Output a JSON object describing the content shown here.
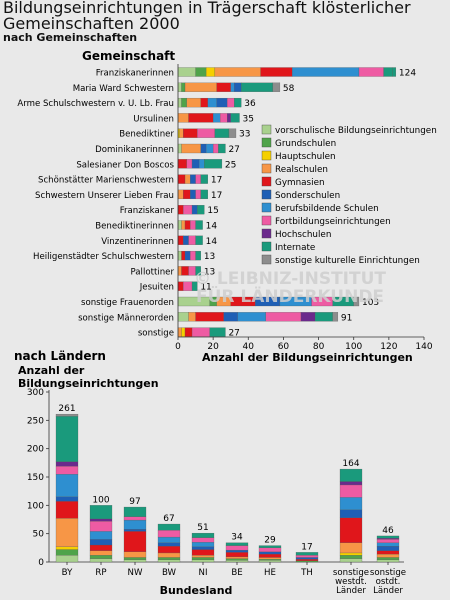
{
  "title": "Bildungseinrichtungen in Trägerschaft klösterlicher Gemeinschaften 2000",
  "subtitle": "nach Gemeinschaften",
  "watermark": [
    "© LEIBNIZ-INSTITUT",
    "FÜR LÄNDERKUNDE"
  ],
  "colors": {
    "vorschulisch": "#a9d18e",
    "grundschulen": "#4fa34a",
    "hauptschulen": "#f5d000",
    "realschulen": "#f79646",
    "gymnasien": "#e0161b",
    "sonderschulen": "#1f5fb5",
    "berufsbildend": "#2e8fd0",
    "fortbildung": "#ee5ba3",
    "hochschulen": "#6b2a8c",
    "internate": "#1a9a7c",
    "sonstige": "#8d8d8d"
  },
  "chart_data": [
    {
      "type": "bar",
      "orientation": "horizontal",
      "stacked": true,
      "ylabel": "Gemeinschaft",
      "xlabel": "Anzahl der Bildungseinrichtungen",
      "xlim": [
        0,
        140
      ],
      "xticks": [
        0,
        20,
        40,
        60,
        80,
        100,
        120,
        140
      ],
      "grid": false,
      "legend_position": "right",
      "legend": [
        {
          "key": "vorschulisch",
          "label": "vorschulische Bildungseinrichtungen"
        },
        {
          "key": "grundschulen",
          "label": "Grundschulen"
        },
        {
          "key": "hauptschulen",
          "label": "Hauptschulen"
        },
        {
          "key": "realschulen",
          "label": "Realschulen"
        },
        {
          "key": "gymnasien",
          "label": "Gymnasien"
        },
        {
          "key": "sonderschulen",
          "label": "Sonderschulen"
        },
        {
          "key": "berufsbildend",
          "label": "berufsbildende Schulen"
        },
        {
          "key": "fortbildung",
          "label": "Fortbildungseinrichtungen"
        },
        {
          "key": "hochschulen",
          "label": "Hochschulen"
        },
        {
          "key": "internate",
          "label": "Internate"
        },
        {
          "key": "sonstige",
          "label": "sonstige kulturelle Einrichtungen"
        }
      ],
      "categories": [
        "Franziskanerinnen",
        "Maria Ward Schwestern",
        "Arme Schulschwestern v. U. Lb. Frau",
        "Ursulinen",
        "Benediktiner",
        "Dominikanerinnen",
        "Salesianer Don Boscos",
        "Schönstätter Marienschwestern",
        "Schwestern Unserer Lieben Frau",
        "Franziskaner",
        "Benediktinerinnen",
        "Vinzentinerinnen",
        "Heiligenstädter Schulschwestern",
        "Pallottiner",
        "Jesuiten",
        "sonstige Frauenorden",
        "sonstige Männerorden",
        "sonstige"
      ],
      "totals": [
        124,
        58,
        36,
        35,
        33,
        27,
        25,
        17,
        17,
        15,
        14,
        14,
        13,
        13,
        11,
        103,
        91,
        27
      ],
      "segments": [
        [
          [
            "vorschulisch",
            10
          ],
          [
            "grundschulen",
            6
          ],
          [
            "hauptschulen",
            5
          ],
          [
            "realschulen",
            26
          ],
          [
            "gymnasien",
            18
          ],
          [
            "berufsbildend",
            38
          ],
          [
            "fortbildung",
            14
          ],
          [
            "internate",
            5
          ],
          [
            "internate",
            2
          ]
        ],
        [
          [
            "vorschulisch",
            2
          ],
          [
            "grundschulen",
            2
          ],
          [
            "realschulen",
            18
          ],
          [
            "gymnasien",
            8
          ],
          [
            "berufsbildend",
            2
          ],
          [
            "sonderschulen",
            4
          ],
          [
            "internate",
            18
          ],
          [
            "sonstige",
            4
          ]
        ],
        [
          [
            "vorschulisch",
            2
          ],
          [
            "grundschulen",
            3
          ],
          [
            "realschulen",
            8
          ],
          [
            "gymnasien",
            4
          ],
          [
            "berufsbildend",
            5
          ],
          [
            "sonderschulen",
            6
          ],
          [
            "fortbildung",
            4
          ],
          [
            "internate",
            4
          ]
        ],
        [
          [
            "realschulen",
            6
          ],
          [
            "gymnasien",
            14
          ],
          [
            "berufsbildend",
            4
          ],
          [
            "fortbildung",
            4
          ],
          [
            "hochschulen",
            2
          ],
          [
            "internate",
            5
          ]
        ],
        [
          [
            "hauptschulen",
            1
          ],
          [
            "realschulen",
            2
          ],
          [
            "gymnasien",
            8
          ],
          [
            "fortbildung",
            10
          ],
          [
            "internate",
            8
          ],
          [
            "sonstige",
            4
          ]
        ],
        [
          [
            "vorschulisch",
            2
          ],
          [
            "realschulen",
            11
          ],
          [
            "sonderschulen",
            3
          ],
          [
            "berufsbildend",
            4
          ],
          [
            "fortbildung",
            3
          ],
          [
            "internate",
            4
          ]
        ],
        [
          [
            "gymnasien",
            5
          ],
          [
            "fortbildung",
            3
          ],
          [
            "sonderschulen",
            4
          ],
          [
            "berufsbildend",
            3
          ],
          [
            "internate",
            10
          ]
        ],
        [
          [
            "gymnasien",
            4
          ],
          [
            "realschulen",
            3
          ],
          [
            "sonderschulen",
            3
          ],
          [
            "fortbildung",
            3
          ],
          [
            "internate",
            4
          ]
        ],
        [
          [
            "realschulen",
            3
          ],
          [
            "gymnasien",
            4
          ],
          [
            "sonderschulen",
            3
          ],
          [
            "fortbildung",
            3
          ],
          [
            "internate",
            4
          ]
        ],
        [
          [
            "gymnasien",
            3
          ],
          [
            "fortbildung",
            5
          ],
          [
            "sonderschulen",
            3
          ],
          [
            "internate",
            4
          ]
        ],
        [
          [
            "vorschulisch",
            2
          ],
          [
            "realschulen",
            2
          ],
          [
            "gymnasien",
            3
          ],
          [
            "fortbildung",
            3
          ],
          [
            "internate",
            4
          ]
        ],
        [
          [
            "gymnasien",
            3
          ],
          [
            "sonderschulen",
            3
          ],
          [
            "fortbildung",
            4
          ],
          [
            "internate",
            4
          ]
        ],
        [
          [
            "vorschulisch",
            2
          ],
          [
            "gymnasien",
            2
          ],
          [
            "sonderschulen",
            3
          ],
          [
            "fortbildung",
            3
          ],
          [
            "internate",
            3
          ]
        ],
        [
          [
            "realschulen",
            2
          ],
          [
            "gymnasien",
            4
          ],
          [
            "fortbildung",
            4
          ],
          [
            "internate",
            3
          ]
        ],
        [
          [
            "gymnasien",
            3
          ],
          [
            "fortbildung",
            5
          ],
          [
            "internate",
            3
          ]
        ],
        [
          [
            "vorschulisch",
            18
          ],
          [
            "grundschulen",
            4
          ],
          [
            "realschulen",
            8
          ],
          [
            "gymnasien",
            14
          ],
          [
            "sonderschulen",
            14
          ],
          [
            "berufsbildend",
            18
          ],
          [
            "fortbildung",
            12
          ],
          [
            "internate",
            12
          ],
          [
            "sonstige",
            3
          ]
        ],
        [
          [
            "vorschulisch",
            6
          ],
          [
            "realschulen",
            4
          ],
          [
            "gymnasien",
            16
          ],
          [
            "sonderschulen",
            8
          ],
          [
            "berufsbildend",
            16
          ],
          [
            "fortbildung",
            20
          ],
          [
            "hochschulen",
            8
          ],
          [
            "internate",
            10
          ],
          [
            "sonstige",
            3
          ]
        ],
        [
          [
            "realschulen",
            2
          ],
          [
            "hauptschulen",
            2
          ],
          [
            "gymnasien",
            4
          ],
          [
            "fortbildung",
            10
          ],
          [
            "internate",
            9
          ]
        ]
      ]
    },
    {
      "type": "bar",
      "orientation": "vertical",
      "stacked": true,
      "title": "nach Ländern",
      "ylabel": "Anzahl der Bildungseinrichtungen",
      "xlabel": "Bundesland",
      "ylim": [
        0,
        300
      ],
      "yticks": [
        0,
        50,
        100,
        150,
        200,
        250,
        300
      ],
      "grid": false,
      "categories": [
        "BY",
        "RP",
        "NW",
        "BW",
        "NI",
        "BE",
        "HE",
        "TH",
        "sonstige westdt. Länder",
        "sonstige ostdt. Länder"
      ],
      "category_lines": [
        [
          "BY"
        ],
        [
          "RP"
        ],
        [
          "NW"
        ],
        [
          "BW"
        ],
        [
          "NI"
        ],
        [
          "BE"
        ],
        [
          "HE"
        ],
        [
          "TH"
        ],
        [
          "sonstige",
          "westdt.",
          "Länder"
        ],
        [
          "sonstige",
          "ostdt.",
          "Länder"
        ]
      ],
      "totals": [
        261,
        100,
        97,
        67,
        51,
        34,
        29,
        17,
        164,
        46
      ],
      "segments": [
        [
          [
            "vorschulisch",
            12
          ],
          [
            "grundschulen",
            10
          ],
          [
            "hauptschulen",
            5
          ],
          [
            "realschulen",
            50
          ],
          [
            "gymnasien",
            30
          ],
          [
            "sonderschulen",
            8
          ],
          [
            "berufsbildend",
            40
          ],
          [
            "fortbildung",
            14
          ],
          [
            "hochschulen",
            8
          ],
          [
            "internate",
            80
          ],
          [
            "sonstige",
            4
          ]
        ],
        [
          [
            "vorschulisch",
            6
          ],
          [
            "grundschulen",
            6
          ],
          [
            "realschulen",
            8
          ],
          [
            "gymnasien",
            10
          ],
          [
            "sonderschulen",
            10
          ],
          [
            "berufsbildend",
            14
          ],
          [
            "fortbildung",
            18
          ],
          [
            "hochschulen",
            4
          ],
          [
            "internate",
            24
          ]
        ],
        [
          [
            "vorschulisch",
            4
          ],
          [
            "grundschulen",
            4
          ],
          [
            "realschulen",
            10
          ],
          [
            "gymnasien",
            36
          ],
          [
            "sonderschulen",
            4
          ],
          [
            "berufsbildend",
            16
          ],
          [
            "fortbildung",
            6
          ],
          [
            "internate",
            17
          ]
        ],
        [
          [
            "vorschulisch",
            4
          ],
          [
            "grundschulen",
            4
          ],
          [
            "realschulen",
            8
          ],
          [
            "gymnasien",
            12
          ],
          [
            "sonderschulen",
            6
          ],
          [
            "berufsbildend",
            10
          ],
          [
            "fortbildung",
            12
          ],
          [
            "internate",
            11
          ]
        ],
        [
          [
            "vorschulisch",
            4
          ],
          [
            "grundschulen",
            4
          ],
          [
            "realschulen",
            4
          ],
          [
            "gymnasien",
            10
          ],
          [
            "sonderschulen",
            5
          ],
          [
            "berufsbildend",
            8
          ],
          [
            "fortbildung",
            8
          ],
          [
            "internate",
            8
          ]
        ],
        [
          [
            "vorschulisch",
            3
          ],
          [
            "grundschulen",
            3
          ],
          [
            "realschulen",
            3
          ],
          [
            "gymnasien",
            8
          ],
          [
            "sonderschulen",
            4
          ],
          [
            "fortbildung",
            8
          ],
          [
            "internate",
            5
          ]
        ],
        [
          [
            "vorschulisch",
            3
          ],
          [
            "grundschulen",
            2
          ],
          [
            "realschulen",
            3
          ],
          [
            "gymnasien",
            6
          ],
          [
            "sonderschulen",
            4
          ],
          [
            "fortbildung",
            7
          ],
          [
            "internate",
            4
          ]
        ],
        [
          [
            "grundschulen",
            2
          ],
          [
            "gymnasien",
            3
          ],
          [
            "sonderschulen",
            3
          ],
          [
            "fortbildung",
            4
          ],
          [
            "internate",
            5
          ]
        ],
        [
          [
            "vorschulisch",
            6
          ],
          [
            "grundschulen",
            6
          ],
          [
            "hauptschulen",
            4
          ],
          [
            "realschulen",
            18
          ],
          [
            "gymnasien",
            44
          ],
          [
            "sonderschulen",
            14
          ],
          [
            "berufsbildend",
            22
          ],
          [
            "fortbildung",
            22
          ],
          [
            "hochschulen",
            6
          ],
          [
            "internate",
            22
          ]
        ],
        [
          [
            "vorschulisch",
            4
          ],
          [
            "grundschulen",
            4
          ],
          [
            "realschulen",
            6
          ],
          [
            "gymnasien",
            6
          ],
          [
            "sonderschulen",
            8
          ],
          [
            "berufsbildend",
            6
          ],
          [
            "fortbildung",
            6
          ],
          [
            "hochschulen",
            2
          ],
          [
            "internate",
            4
          ]
        ]
      ]
    }
  ]
}
